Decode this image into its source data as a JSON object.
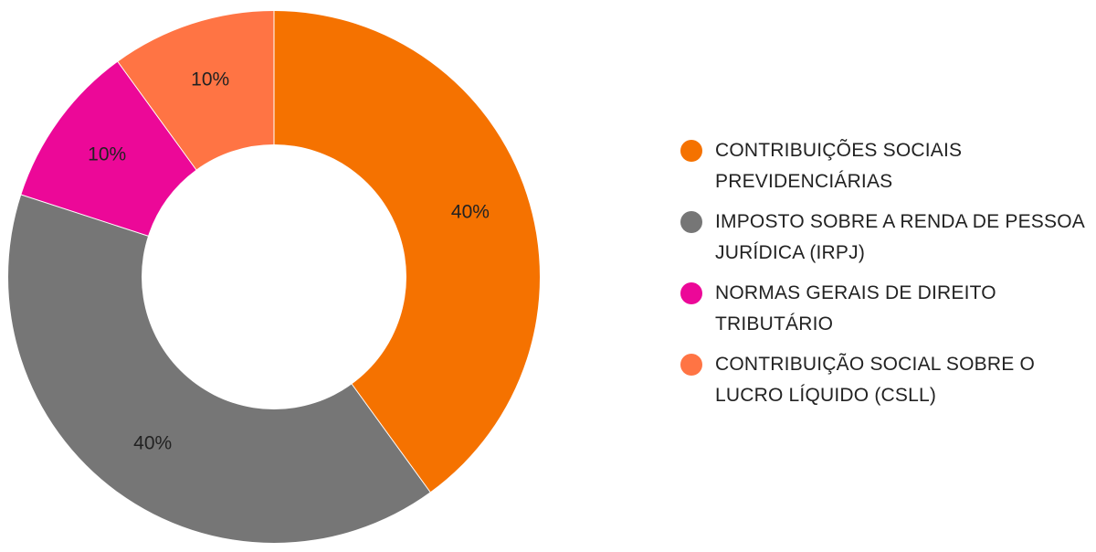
{
  "chart_data": {
    "type": "pie",
    "donut": true,
    "title": "",
    "slices": [
      {
        "label": "CONTRIBUIÇÕES SOCIAIS PREVIDENCIÁRIAS",
        "value": 40,
        "display": "40%",
        "color": "#f57200"
      },
      {
        "label": "IMPOSTO SOBRE A RENDA DE PESSOA JURÍDICA (IRPJ)",
        "value": 40,
        "display": "40%",
        "color": "#767676"
      },
      {
        "label": "NORMAS GERAIS DE DIREITO TRIBUTÁRIO",
        "value": 10,
        "display": "10%",
        "color": "#ec0898"
      },
      {
        "label": "CONTRIBUIÇÃO SOCIAL SOBRE O LUCRO LÍQUIDO (CSLL)",
        "value": 10,
        "display": "10%",
        "color": "#ff7444"
      }
    ],
    "legend_position": "right"
  }
}
